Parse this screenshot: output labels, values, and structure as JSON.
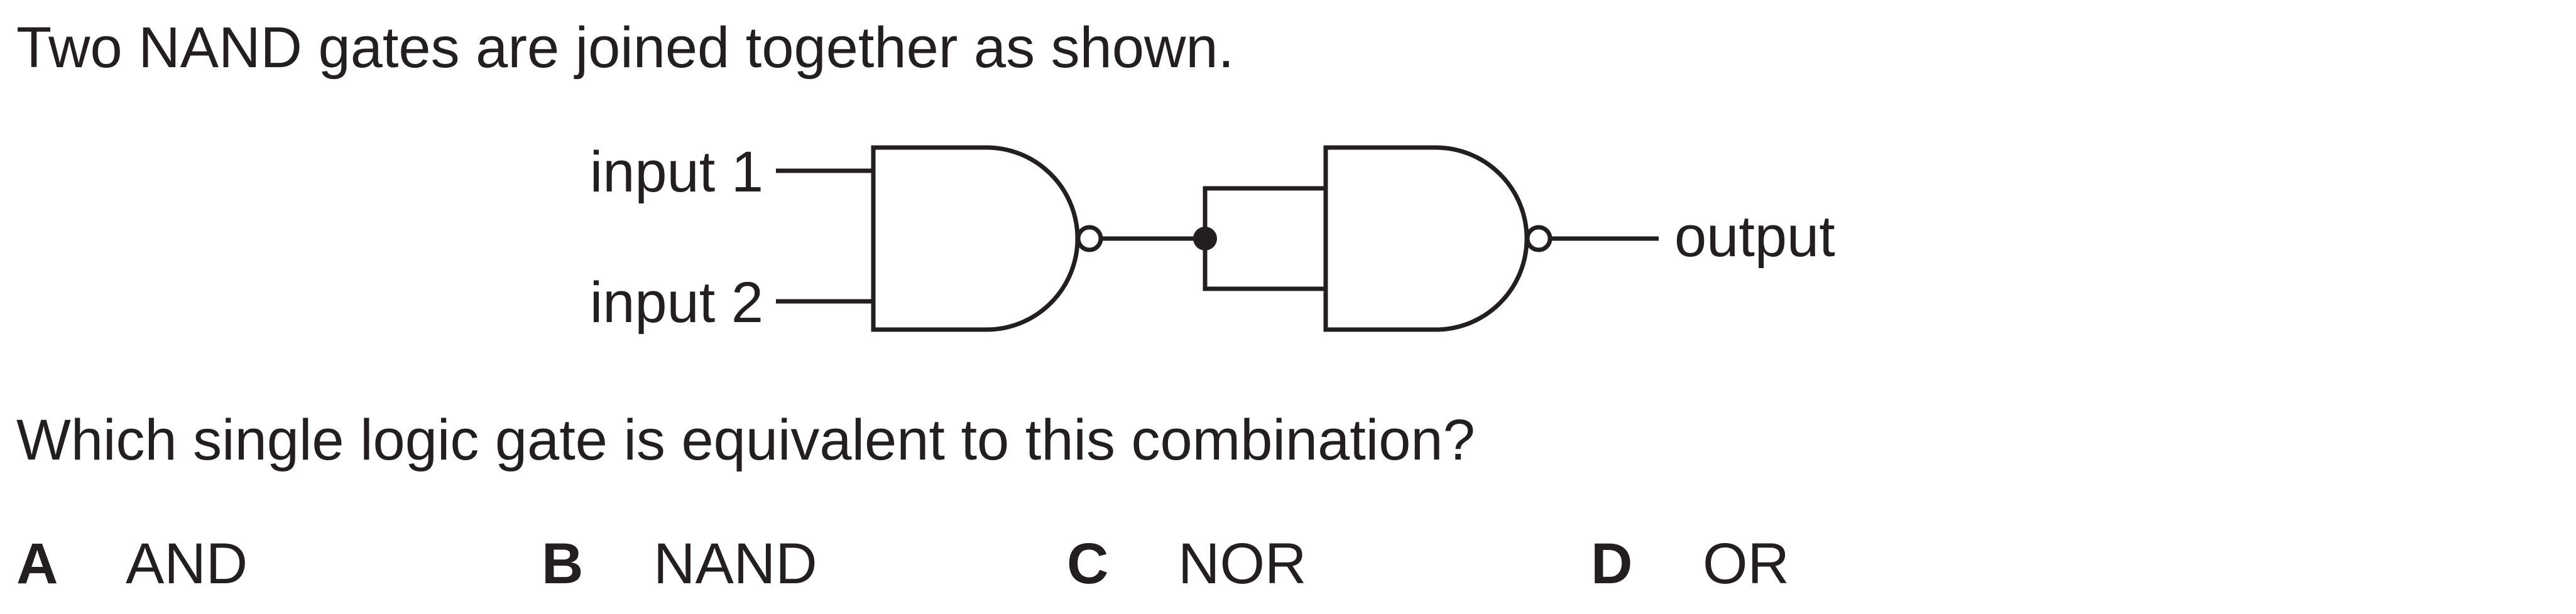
{
  "intro": "Two NAND gates are joined together as shown.",
  "diagram": {
    "input1_label": "input 1",
    "input2_label": "input 2",
    "output_label": "output"
  },
  "question": "Which single logic gate is equivalent to this combination?",
  "options": [
    {
      "letter": "A",
      "text": "AND"
    },
    {
      "letter": "B",
      "text": "NAND"
    },
    {
      "letter": "C",
      "text": "NOR"
    },
    {
      "letter": "D",
      "text": "OR"
    }
  ]
}
